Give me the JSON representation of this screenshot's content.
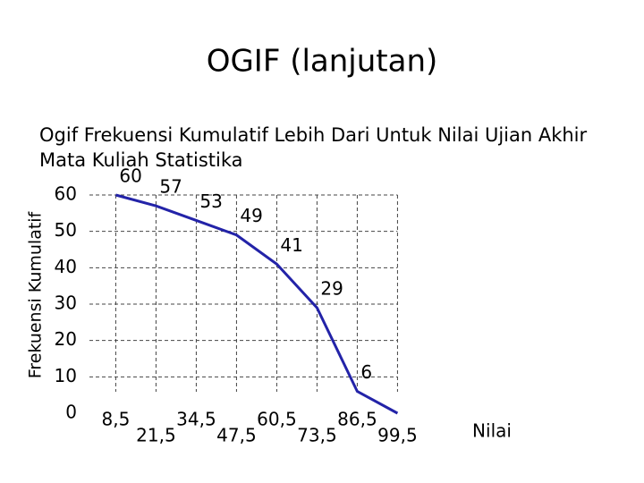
{
  "slide_title": "OGIF (lanjutan)",
  "chart_data": {
    "type": "line",
    "title": [
      "Ogif Frekuensi Kumulatif Lebih Dari Untuk Nilai Ujian Akhir",
      "Mata Kuliah Statistika"
    ],
    "x_label": "Nilai",
    "y_label": "Frekuensi Kumulatif",
    "x": [
      8.5,
      21.5,
      34.5,
      47.5,
      60.5,
      73.5,
      86.5,
      99.5
    ],
    "series": [
      {
        "name": null,
        "color": "#2323a8",
        "values": [
          60,
          57,
          53,
          49,
          41,
          29,
          6,
          0
        ],
        "value_labels": [
          "60",
          "57",
          "53",
          "49",
          "41",
          "29",
          "6",
          null
        ]
      }
    ],
    "xlim": [
      0,
      104
    ],
    "ylim": [
      0,
      60
    ],
    "xticks": [
      {
        "value": 8.5,
        "label": "8,5"
      },
      {
        "value": 21.5,
        "label": "21,5"
      },
      {
        "value": 34.5,
        "label": "34,5"
      },
      {
        "value": 47.5,
        "label": "47,5"
      },
      {
        "value": 60.5,
        "label": "60,5"
      },
      {
        "value": 73.5,
        "label": "73,5"
      },
      {
        "value": 86.5,
        "label": "86,5"
      },
      {
        "value": 99.5,
        "label": "99,5"
      }
    ],
    "yticks": [
      0,
      10,
      20,
      30,
      40,
      50,
      60
    ],
    "grid": true
  }
}
